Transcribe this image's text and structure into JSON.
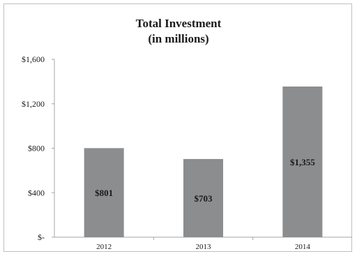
{
  "chart_data": {
    "type": "bar",
    "title": "Total Investment",
    "subtitle": "(in millions)",
    "categories": [
      "2012",
      "2013",
      "2014"
    ],
    "values": [
      801,
      703,
      1355
    ],
    "data_labels": [
      "$801",
      "$703",
      "$1,355"
    ],
    "ylim": [
      0,
      1600
    ],
    "yticks": [
      0,
      400,
      800,
      1200,
      1600
    ],
    "ytick_labels": [
      "$-",
      "$400",
      "$800",
      "$1,200",
      "$1,600"
    ],
    "xlabel": "",
    "ylabel": "",
    "grid": false,
    "legend": "none",
    "bar_color": "#8c8d8f",
    "label_color": "#1a1a1a"
  }
}
